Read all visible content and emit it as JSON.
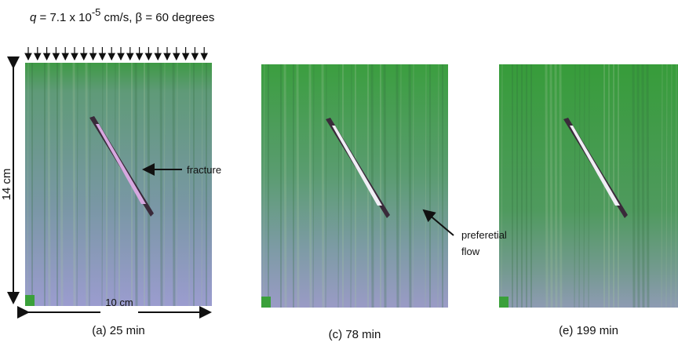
{
  "header": {
    "q": "q",
    "text_before_exponent": " = 7.1 x 10",
    "exponent": "-5",
    "text_after_exponent": " cm/s, β = 60 degrees"
  },
  "annotations": {
    "height": "14 cm",
    "width": "10 cm",
    "fracture": "fracture",
    "flow_line1": "preferetial",
    "flow_line2": "flow"
  },
  "panels": [
    {
      "caption": "(a) 25 min"
    },
    {
      "caption": "(c) 78 min"
    },
    {
      "caption": "(e) 199 min"
    }
  ]
}
